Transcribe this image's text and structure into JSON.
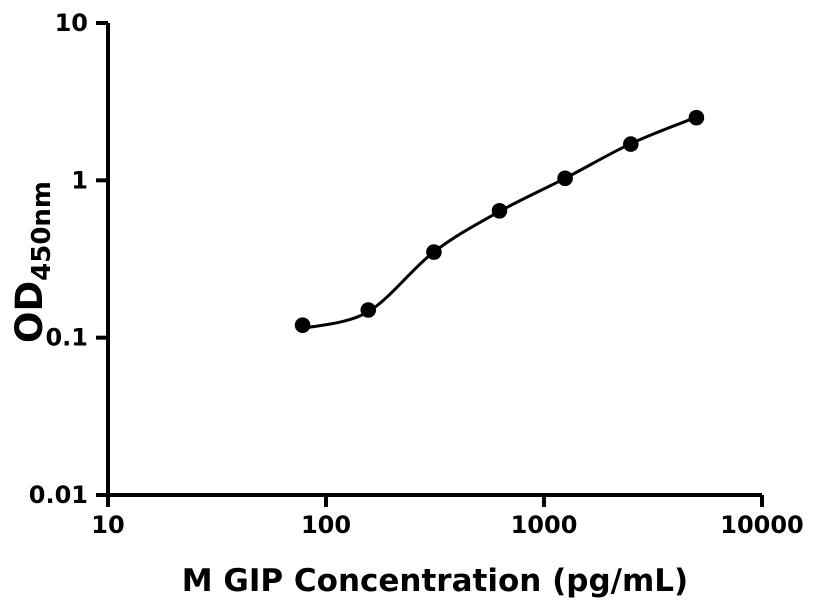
{
  "chart_data": {
    "type": "scatter",
    "title": "",
    "xlabel": "M GIP Concentration (pg/mL)",
    "ylabel": "OD",
    "ylabel_subscript": "450nm",
    "grid": false,
    "legend": false,
    "background_color": "#ffffff",
    "axis_color": "#000000",
    "x_axis": {
      "scale": "log",
      "min": 10,
      "max": 10000,
      "ticks": [
        {
          "value": 10,
          "label": "10"
        },
        {
          "value": 100,
          "label": "100"
        },
        {
          "value": 1000,
          "label": "1000"
        },
        {
          "value": 10000,
          "label": "10000"
        }
      ]
    },
    "y_axis": {
      "scale": "log",
      "min": 0.01,
      "max": 10,
      "ticks": [
        {
          "value": 10,
          "label": "10"
        },
        {
          "value": 1,
          "label": "1"
        },
        {
          "value": 0.1,
          "label": "0.1"
        },
        {
          "value": 0.01,
          "label": "0.01"
        }
      ]
    },
    "series": [
      {
        "name": "standard-points",
        "type": "scatter",
        "marker": "filled-circle",
        "color": "#000000",
        "points": [
          {
            "x": 78.125,
            "od": 0.12
          },
          {
            "x": 156.25,
            "od": 0.15
          },
          {
            "x": 312.5,
            "od": 0.35
          },
          {
            "x": 625,
            "od": 0.64
          },
          {
            "x": 1250,
            "od": 1.03
          },
          {
            "x": 2500,
            "od": 1.7
          },
          {
            "x": 5000,
            "od": 2.5
          }
        ]
      },
      {
        "name": "fitted-curve",
        "type": "smooth-line",
        "color": "#000000",
        "points": [
          {
            "x": 80,
            "od": 0.115
          },
          {
            "x": 156,
            "od": 0.146
          },
          {
            "x": 312,
            "od": 0.35
          },
          {
            "x": 625,
            "od": 0.635
          },
          {
            "x": 1250,
            "od": 1.03
          },
          {
            "x": 2500,
            "od": 1.71
          },
          {
            "x": 4930,
            "od": 2.5
          }
        ]
      }
    ]
  }
}
